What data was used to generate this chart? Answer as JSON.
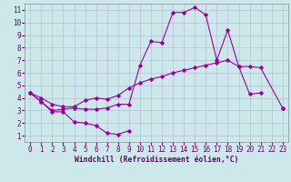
{
  "xlabel": "Windchill (Refroidissement éolien,°C)",
  "x": [
    0,
    1,
    2,
    3,
    4,
    5,
    6,
    7,
    8,
    9,
    10,
    11,
    12,
    13,
    14,
    15,
    16,
    17,
    18,
    19,
    20,
    21,
    22,
    23
  ],
  "line1_y": [
    4.4,
    3.7,
    2.9,
    2.9,
    2.1,
    2.0,
    1.8,
    1.2,
    1.1,
    1.4,
    null,
    null,
    null,
    null,
    null,
    null,
    null,
    null,
    null,
    null,
    null,
    null,
    null,
    null
  ],
  "line2_y": [
    4.4,
    3.7,
    3.0,
    3.1,
    3.2,
    3.1,
    3.1,
    3.2,
    3.5,
    3.5,
    6.6,
    8.5,
    8.4,
    10.8,
    10.8,
    11.2,
    10.6,
    7.0,
    9.4,
    6.5,
    4.3,
    4.4,
    null,
    3.2
  ],
  "line3_y": [
    4.4,
    4.0,
    3.5,
    3.3,
    3.3,
    3.8,
    4.0,
    3.9,
    4.2,
    4.8,
    5.2,
    5.5,
    5.7,
    6.0,
    6.2,
    6.4,
    6.6,
    6.8,
    7.0,
    6.5,
    6.5,
    6.4,
    null,
    3.2
  ],
  "line_color": "#990099",
  "bg_color": "#cce8ea",
  "grid_color": "#aaaacc",
  "axis_color": "#660066",
  "xlim": [
    -0.5,
    23.5
  ],
  "ylim": [
    0.5,
    11.5
  ],
  "yticks": [
    1,
    2,
    3,
    4,
    5,
    6,
    7,
    8,
    9,
    10,
    11
  ],
  "xticks": [
    0,
    1,
    2,
    3,
    4,
    5,
    6,
    7,
    8,
    9,
    10,
    11,
    12,
    13,
    14,
    15,
    16,
    17,
    18,
    19,
    20,
    21,
    22,
    23
  ],
  "tick_fontsize": 5.5,
  "xlabel_fontsize": 5.8
}
